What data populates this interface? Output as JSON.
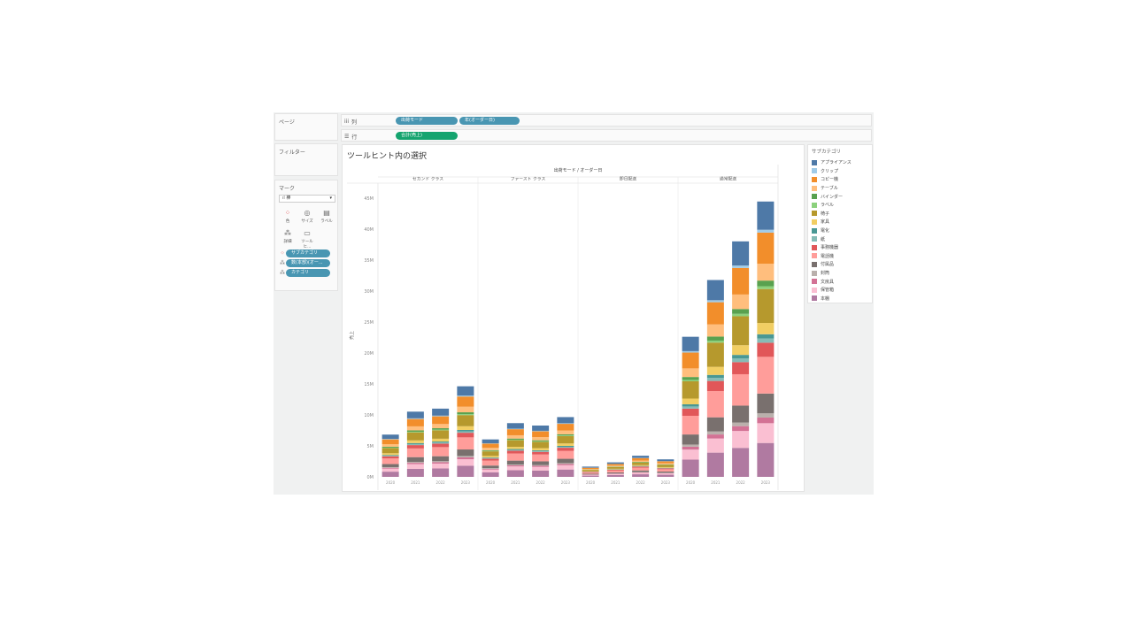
{
  "panels": {
    "pages": "ページ",
    "filters": "フィルター",
    "marks": "マーク"
  },
  "shelves": {
    "columns": {
      "icon": "iii",
      "label": "列",
      "pills": [
        "出荷モード",
        "年(オーダー日)"
      ]
    },
    "rows": {
      "icon": "☰",
      "label": "行",
      "pills": [
        "合計(売上)"
      ]
    }
  },
  "marks": {
    "type": "棒",
    "buttons": [
      {
        "icon": "color-icon",
        "glyph": "⁘",
        "label": "色"
      },
      {
        "icon": "size-icon",
        "glyph": "◎",
        "label": "サイズ"
      },
      {
        "icon": "label-icon",
        "glyph": "▤",
        "label": "ラベル"
      },
      {
        "icon": "detail-icon",
        "glyph": "⁂",
        "label": "詳細"
      },
      {
        "icon": "tooltip-icon",
        "glyph": "▭",
        "label": "ツールヒ..."
      }
    ],
    "fields": [
      {
        "icon": "color-icon",
        "glyph": "⁘",
        "label": "サブカテゴリ"
      },
      {
        "icon": "detail-icon",
        "glyph": "⁂",
        "label": "数(本部)(オー..."
      },
      {
        "icon": "detail-icon",
        "glyph": "⁂",
        "label": "カテゴリ"
      }
    ]
  },
  "legend": {
    "title": "サブカテゴリ",
    "items": [
      {
        "label": "アプライアンス",
        "color": "#4e79a7"
      },
      {
        "label": "クリップ",
        "color": "#a0cbe8"
      },
      {
        "label": "コピー機",
        "color": "#f28e2b"
      },
      {
        "label": "テーブル",
        "color": "#ffbe7d"
      },
      {
        "label": "バインダー",
        "color": "#59a14f"
      },
      {
        "label": "ラベル",
        "color": "#8cd17d"
      },
      {
        "label": "椅子",
        "color": "#b6992d"
      },
      {
        "label": "家具",
        "color": "#f1ce63"
      },
      {
        "label": "電化",
        "color": "#499894"
      },
      {
        "label": "紙",
        "color": "#86bcb6"
      },
      {
        "label": "事務機器",
        "color": "#e15759"
      },
      {
        "label": "電話機",
        "color": "#ff9d9a"
      },
      {
        "label": "付属品",
        "color": "#79706e"
      },
      {
        "label": "封筒",
        "color": "#bab0ac"
      },
      {
        "label": "文房具",
        "color": "#d37295"
      },
      {
        "label": "保管箱",
        "color": "#fabfd2"
      },
      {
        "label": "本棚",
        "color": "#b07aa1"
      }
    ]
  },
  "chart_data": {
    "type": "bar",
    "title": "ツールヒント内の選択",
    "column_header": "出荷モード / オーダー日",
    "ylabel": "売上",
    "ylim": [
      0,
      45000000
    ],
    "yticks": [
      "0M",
      "5M",
      "10M",
      "15M",
      "20M",
      "25M",
      "30M",
      "35M",
      "40M",
      "45M"
    ],
    "years": [
      "2020",
      "2021",
      "2022",
      "2023"
    ],
    "groups": [
      {
        "name": "セカンド クラス",
        "totals": [
          7000000,
          10800000,
          11300000,
          15000000
        ]
      },
      {
        "name": "ファースト クラス",
        "totals": [
          6200000,
          8900000,
          8500000,
          9900000
        ]
      },
      {
        "name": "即日配送",
        "totals": [
          1700000,
          2400000,
          3500000,
          2900000
        ]
      },
      {
        "name": "通常配送",
        "totals": [
          23200000,
          32600000,
          39000000,
          45600000
        ]
      }
    ],
    "series_share": {
      "アプライアンス": 0.1,
      "クリップ": 0.01,
      "コピー機": 0.11,
      "テーブル": 0.06,
      "バインダー": 0.02,
      "ラベル": 0.01,
      "椅子": 0.12,
      "家具": 0.04,
      "電化": 0.015,
      "紙": 0.015,
      "事務機器": 0.05,
      "電話機": 0.13,
      "付属品": 0.07,
      "封筒": 0.015,
      "文房具": 0.02,
      "保管箱": 0.07,
      "本棚": 0.12
    },
    "stack_order": [
      "本棚",
      "保管箱",
      "文房具",
      "封筒",
      "付属品",
      "電話機",
      "事務機器",
      "紙",
      "電化",
      "家具",
      "椅子",
      "ラベル",
      "バインダー",
      "テーブル",
      "コピー機",
      "クリップ",
      "アプライアンス"
    ]
  }
}
